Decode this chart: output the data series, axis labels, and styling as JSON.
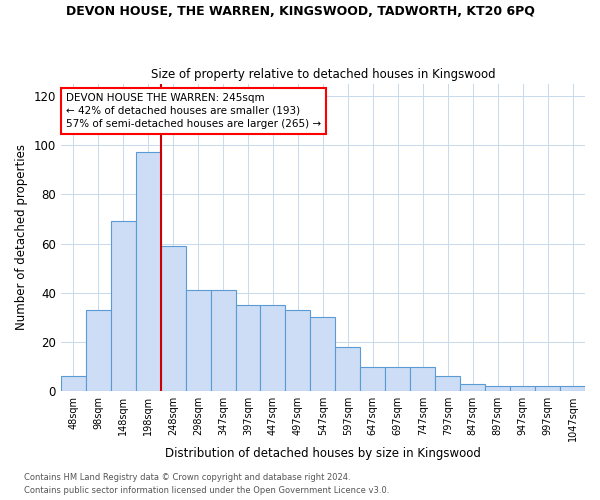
{
  "title": "DEVON HOUSE, THE WARREN, KINGSWOOD, TADWORTH, KT20 6PQ",
  "subtitle": "Size of property relative to detached houses in Kingswood",
  "xlabel": "Distribution of detached houses by size in Kingswood",
  "ylabel": "Number of detached properties",
  "categories": [
    "48sqm",
    "98sqm",
    "148sqm",
    "198sqm",
    "248sqm",
    "298sqm",
    "347sqm",
    "397sqm",
    "447sqm",
    "497sqm",
    "547sqm",
    "597sqm",
    "647sqm",
    "697sqm",
    "747sqm",
    "797sqm",
    "847sqm",
    "897sqm",
    "947sqm",
    "997sqm",
    "1047sqm"
  ],
  "values": [
    6,
    33,
    69,
    97,
    59,
    41,
    41,
    35,
    35,
    33,
    30,
    18,
    10,
    10,
    10,
    6,
    3,
    2,
    2,
    2,
    2
  ],
  "bar_color": "#ccddf5",
  "bar_edge_color": "#5b9bd5",
  "reference_line_index": 3.5,
  "reference_line_color": "#cc0000",
  "annotation_text": "DEVON HOUSE THE WARREN: 245sqm\n← 42% of detached houses are smaller (193)\n57% of semi-detached houses are larger (265) →",
  "ylim": [
    0,
    125
  ],
  "yticks": [
    0,
    20,
    40,
    60,
    80,
    100,
    120
  ],
  "footer_line1": "Contains HM Land Registry data © Crown copyright and database right 2024.",
  "footer_line2": "Contains public sector information licensed under the Open Government Licence v3.0.",
  "background_color": "#ffffff",
  "grid_color": "#c8d9ed"
}
